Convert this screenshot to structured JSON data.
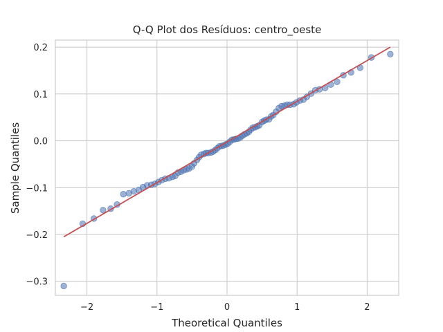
{
  "colors": {
    "grid": "#cccccc",
    "spine": "#cccccc",
    "point_fill": "#4c72b0",
    "line": "#c44e52",
    "text": "#262626"
  },
  "chart_data": {
    "type": "scatter",
    "title": "Q-Q Plot dos Resíduos: centro_oeste",
    "xlabel": "Theoretical Quantiles",
    "ylabel": "Sample Quantiles",
    "xlim": [
      -2.45,
      2.45
    ],
    "ylim": [
      -0.33,
      0.215
    ],
    "xticks": [
      {
        "value": -2,
        "label": "−2"
      },
      {
        "value": -1,
        "label": "−1"
      },
      {
        "value": 0,
        "label": "0"
      },
      {
        "value": 1,
        "label": "1"
      },
      {
        "value": 2,
        "label": "2"
      }
    ],
    "yticks": [
      {
        "value": -0.3,
        "label": "−0.3"
      },
      {
        "value": -0.2,
        "label": "−0.2"
      },
      {
        "value": -0.1,
        "label": "−0.1"
      },
      {
        "value": 0.0,
        "label": "0.0"
      },
      {
        "value": 0.1,
        "label": "0.1"
      },
      {
        "value": 0.2,
        "label": "0.2"
      }
    ],
    "grid": true,
    "reference_line": {
      "x": [
        -2.33,
        2.33
      ],
      "y": [
        -0.205,
        0.2
      ]
    },
    "points": [
      [
        -2.33,
        -0.31
      ],
      [
        -2.06,
        -0.177
      ],
      [
        -1.9,
        -0.166
      ],
      [
        -1.77,
        -0.148
      ],
      [
        -1.66,
        -0.145
      ],
      [
        -1.57,
        -0.136
      ],
      [
        -1.48,
        -0.114
      ],
      [
        -1.4,
        -0.112
      ],
      [
        -1.33,
        -0.108
      ],
      [
        -1.26,
        -0.105
      ],
      [
        -1.2,
        -0.099
      ],
      [
        -1.14,
        -0.095
      ],
      [
        -1.08,
        -0.094
      ],
      [
        -1.03,
        -0.092
      ],
      [
        -0.98,
        -0.088
      ],
      [
        -0.93,
        -0.084
      ],
      [
        -0.88,
        -0.081
      ],
      [
        -0.83,
        -0.08
      ],
      [
        -0.78,
        -0.077
      ],
      [
        -0.74,
        -0.075
      ],
      [
        -0.7,
        -0.068
      ],
      [
        -0.66,
        -0.066
      ],
      [
        -0.62,
        -0.063
      ],
      [
        -0.58,
        -0.061
      ],
      [
        -0.54,
        -0.059
      ],
      [
        -0.5,
        -0.055
      ],
      [
        -0.47,
        -0.048
      ],
      [
        -0.43,
        -0.041
      ],
      [
        -0.4,
        -0.035
      ],
      [
        -0.37,
        -0.03
      ],
      [
        -0.33,
        -0.028
      ],
      [
        -0.3,
        -0.026
      ],
      [
        -0.27,
        -0.026
      ],
      [
        -0.23,
        -0.025
      ],
      [
        -0.2,
        -0.023
      ],
      [
        -0.17,
        -0.02
      ],
      [
        -0.14,
        -0.016
      ],
      [
        -0.11,
        -0.012
      ],
      [
        -0.08,
        -0.011
      ],
      [
        -0.05,
        -0.01
      ],
      [
        -0.02,
        -0.008
      ],
      [
        0.01,
        -0.006
      ],
      [
        0.04,
        -0.002
      ],
      [
        0.07,
        0.002
      ],
      [
        0.1,
        0.003
      ],
      [
        0.13,
        0.004
      ],
      [
        0.16,
        0.005
      ],
      [
        0.19,
        0.007
      ],
      [
        0.22,
        0.011
      ],
      [
        0.25,
        0.014
      ],
      [
        0.28,
        0.016
      ],
      [
        0.31,
        0.019
      ],
      [
        0.34,
        0.024
      ],
      [
        0.37,
        0.028
      ],
      [
        0.4,
        0.029
      ],
      [
        0.43,
        0.031
      ],
      [
        0.46,
        0.033
      ],
      [
        0.5,
        0.04
      ],
      [
        0.53,
        0.043
      ],
      [
        0.56,
        0.045
      ],
      [
        0.6,
        0.046
      ],
      [
        0.63,
        0.052
      ],
      [
        0.66,
        0.055
      ],
      [
        0.7,
        0.062
      ],
      [
        0.74,
        0.07
      ],
      [
        0.78,
        0.074
      ],
      [
        0.82,
        0.075
      ],
      [
        0.86,
        0.077
      ],
      [
        0.9,
        0.077
      ],
      [
        0.95,
        0.078
      ],
      [
        0.99,
        0.082
      ],
      [
        1.04,
        0.086
      ],
      [
        1.09,
        0.088
      ],
      [
        1.14,
        0.094
      ],
      [
        1.2,
        0.101
      ],
      [
        1.26,
        0.108
      ],
      [
        1.32,
        0.11
      ],
      [
        1.4,
        0.113
      ],
      [
        1.48,
        0.12
      ],
      [
        1.57,
        0.126
      ],
      [
        1.66,
        0.14
      ],
      [
        1.77,
        0.146
      ],
      [
        1.9,
        0.156
      ],
      [
        2.06,
        0.178
      ],
      [
        2.33,
        0.185
      ]
    ]
  }
}
